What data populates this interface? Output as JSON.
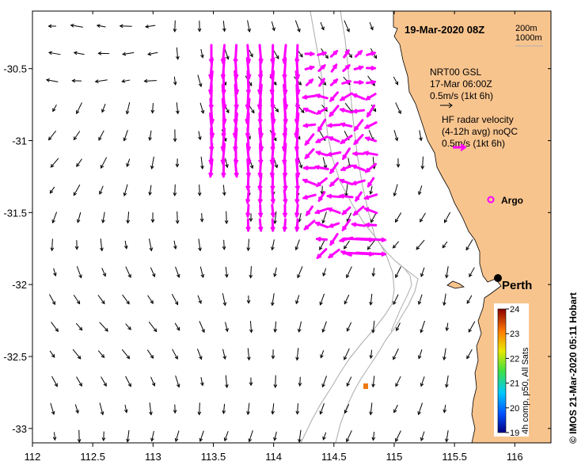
{
  "title": "19-Mar-2020 08Z",
  "depth_legend": {
    "line1": "200m",
    "line2": "1000m"
  },
  "model_legend": {
    "line1": "NRT00 GSL",
    "line2": "17-Mar 06:00Z",
    "line3": "0.5m/s (1kt 6h)"
  },
  "radar_legend": {
    "line1": "HF radar velocity",
    "line2": "(4-12h avg) noQC",
    "line3": "0.5m/s (1kt 6h)"
  },
  "argo_label": "Argo",
  "city_label": "Perth",
  "credit": "©  IMOS 21-Mar-2020 05:11 Hobart",
  "colorbar": {
    "title": "4h comp, p50, All Sats",
    "ticks": [
      "19",
      "20",
      "21",
      "22",
      "23",
      "24"
    ],
    "min": 19,
    "max": 24
  },
  "axes": {
    "x_ticks": [
      "112",
      "112.5",
      "113",
      "113.5",
      "114",
      "114.5",
      "115",
      "115.5",
      "116"
    ],
    "y_ticks": [
      "-30.5",
      "-31",
      "-31.5",
      "-32",
      "-32.5",
      "-33"
    ],
    "xlim": [
      112,
      116.3
    ],
    "ylim": [
      -33.1,
      -30.1
    ]
  },
  "colors": {
    "land": "#f8c48e",
    "radar_arrow": "#ff00ff",
    "model_arrow": "#000000",
    "isobath": "#b0b0b0",
    "sst_marker": "#ee7a10"
  },
  "markers": {
    "argo": {
      "lon": 115.74,
      "lat": -31.41
    },
    "perth": {
      "lon": 115.86,
      "lat": -31.95
    },
    "sst_pixel": {
      "lon": 114.78,
      "lat": -32.71
    }
  }
}
